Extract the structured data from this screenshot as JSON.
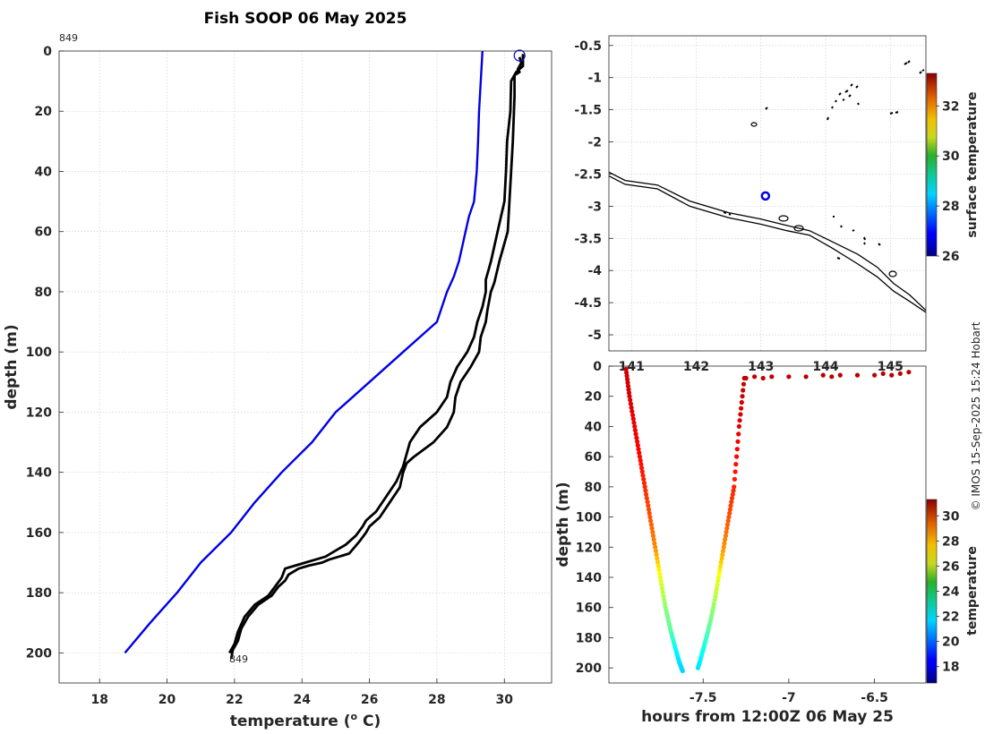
{
  "figure": {
    "title": "Fish SOOP 06 May 2025",
    "credit": "© IMOS 15-Sep-2025 15:24 Hobart"
  },
  "chart_data": [
    {
      "type": "line",
      "panel": "profile",
      "xlabel": "temperature (o C)",
      "xlabel_main": "temperature (",
      "xlabel_sup": "o",
      "xlabel_end": " C)",
      "ylabel": "depth (m)",
      "xlim": [
        16.8,
        31.4
      ],
      "ylim": [
        210,
        0
      ],
      "y_reversed": true,
      "xticks": [
        18,
        20,
        22,
        24,
        26,
        28,
        30
      ],
      "yticks": [
        0,
        20,
        40,
        60,
        80,
        100,
        120,
        140,
        160,
        180,
        200
      ],
      "grid": true,
      "annotations": [
        {
          "text": "849",
          "x": 16.8,
          "y": 0
        },
        {
          "text": "849",
          "x": 21.8,
          "y": 202
        }
      ],
      "marker": {
        "shape": "open-circle",
        "color": "#1010c8",
        "x": 30.45,
        "y": 1.5
      },
      "series": [
        {
          "color": "#0000e6",
          "x": [
            29.35,
            29.3,
            29.25,
            29.22,
            29.18,
            29.1,
            28.95,
            28.85,
            28.75,
            28.65,
            28.5,
            28.3,
            28.0,
            27.0,
            26.0,
            25.0,
            24.3,
            23.4,
            22.6,
            21.9,
            21.0,
            20.3,
            19.5,
            18.75
          ],
          "y": [
            0,
            10,
            20,
            30,
            40,
            50,
            55,
            60,
            65,
            70,
            75,
            80,
            90,
            100,
            110,
            120,
            130,
            140,
            150,
            160,
            170,
            180,
            190,
            200
          ]
        },
        {
          "color": "#000000",
          "x": [
            30.45,
            30.5,
            30.4,
            30.45,
            30.3,
            30.3,
            30.25,
            30.2,
            30.15,
            30.1,
            29.85,
            29.7,
            29.6,
            29.55,
            29.5,
            29.45,
            29.3,
            29.25,
            29.0,
            28.7,
            28.55,
            28.5,
            28.3,
            27.9,
            27.3,
            27.1,
            27.0,
            26.9,
            26.6,
            26.3,
            26.0,
            25.9,
            25.7,
            25.4,
            25.1,
            24.8,
            24.6,
            24.2,
            23.9,
            23.6,
            23.5,
            23.3,
            23.1,
            22.7,
            22.4,
            22.2,
            22.1,
            21.95,
            21.9
          ],
          "y": [
            2,
            4,
            6,
            7,
            8,
            15,
            30,
            40,
            50,
            60,
            70,
            77,
            80,
            83,
            86,
            90,
            95,
            100,
            105,
            110,
            115,
            120,
            125,
            130,
            135,
            137,
            140,
            145,
            150,
            155,
            158,
            160,
            163,
            167,
            168,
            169,
            170,
            171,
            172,
            174,
            176,
            178,
            181,
            184,
            188,
            192,
            196,
            199,
            202
          ]
        },
        {
          "color": "#000000",
          "x": [
            30.55,
            30.55,
            30.35,
            30.2,
            30.18,
            30.08,
            30.05,
            30.0,
            29.8,
            29.6,
            29.45,
            29.45,
            29.35,
            29.2,
            29.1,
            28.9,
            28.6,
            28.4,
            28.3,
            28.0,
            27.5,
            27.2,
            27.1,
            27.0,
            26.8,
            26.5,
            26.2,
            25.9,
            25.8,
            25.6,
            25.3,
            25.0,
            24.7,
            24.4,
            24.1,
            23.8,
            23.5,
            23.4,
            23.2,
            23.0,
            22.6,
            22.3,
            22.1,
            22.0,
            21.85
          ],
          "y": [
            1,
            5,
            7,
            10,
            20,
            30,
            40,
            50,
            60,
            70,
            76,
            80,
            85,
            90,
            95,
            100,
            105,
            110,
            115,
            120,
            125,
            130,
            134,
            138,
            143,
            148,
            153,
            156,
            158,
            161,
            164,
            166,
            168,
            169,
            170,
            171,
            172,
            175,
            178,
            181,
            184,
            188,
            193,
            197,
            200
          ]
        }
      ]
    },
    {
      "type": "map",
      "panel": "map",
      "xlim": [
        140.65,
        145.55
      ],
      "ylim": [
        -5.25,
        -0.35
      ],
      "xticks": [
        141,
        142,
        143,
        144,
        145
      ],
      "yticks": [
        -0.5,
        -1,
        -1.5,
        -2,
        -2.5,
        -3,
        -3.5,
        -4,
        -4.5,
        -5
      ],
      "grid": true,
      "position_marker": {
        "lon": 143.07,
        "lat": -2.84,
        "color": "#0000e6"
      },
      "coastlines": [
        {
          "lon": [
            140.65,
            140.9,
            141.4,
            141.9,
            142.5,
            143.0,
            143.4,
            143.75,
            144.1,
            144.5,
            144.8,
            145.05,
            145.3,
            145.55
          ],
          "lat": [
            -2.47,
            -2.6,
            -2.67,
            -2.92,
            -3.1,
            -3.2,
            -3.3,
            -3.38,
            -3.55,
            -3.75,
            -3.95,
            -4.2,
            -4.38,
            -4.62
          ]
        },
        {
          "lon": [
            140.65,
            140.9,
            141.4,
            141.9,
            142.5,
            143.0,
            143.4,
            143.75,
            144.1,
            144.5,
            144.8,
            145.05,
            145.3,
            145.55
          ],
          "lat": [
            -2.53,
            -2.66,
            -2.73,
            -3.0,
            -3.18,
            -3.28,
            -3.38,
            -3.45,
            -3.65,
            -3.9,
            -4.1,
            -4.32,
            -4.48,
            -4.65
          ]
        }
      ],
      "colorbar": {
        "label": "surface temperature",
        "min": 26,
        "max": 33.3,
        "ticks": [
          26,
          28,
          30,
          32
        ]
      }
    },
    {
      "type": "scatter",
      "panel": "timeseries",
      "xlabel": "hours from 12:00Z 06 May 25",
      "ylabel": "depth (m)",
      "xlim": [
        -8.05,
        -6.2
      ],
      "ylim": [
        210,
        0
      ],
      "y_reversed": true,
      "xticks": [
        -7.5,
        -7,
        -6.5
      ],
      "yticks": [
        0,
        20,
        40,
        60,
        80,
        100,
        120,
        140,
        160,
        180,
        200
      ],
      "grid": false,
      "series": [
        {
          "name": "",
          "x": [
            -7.95,
            -7.93,
            -7.9,
            -7.87,
            -7.84,
            -7.81,
            -7.78,
            -7.75,
            -7.72,
            -7.69,
            -7.66,
            -7.64,
            -7.62
          ],
          "y": [
            2,
            20,
            40,
            60,
            80,
            100,
            120,
            140,
            160,
            175,
            188,
            196,
            202
          ],
          "temperature": [
            30.2,
            30.0,
            29.7,
            29.4,
            28.9,
            28.3,
            27.5,
            25.5,
            24.2,
            23.5,
            22.2,
            21.8,
            21.6
          ]
        },
        {
          "name": "",
          "x": [
            -7.53,
            -7.5,
            -7.47,
            -7.44,
            -7.41,
            -7.38,
            -7.35,
            -7.32,
            -7.29,
            -7.26
          ],
          "y": [
            200,
            188,
            175,
            160,
            140,
            120,
            100,
            80,
            40,
            8
          ],
          "temperature": [
            21.8,
            22.3,
            23.4,
            24.3,
            25.6,
            27.4,
            28.3,
            29.0,
            29.8,
            30.4
          ]
        },
        {
          "name": "",
          "x": [
            -7.25,
            -7.2,
            -7.15,
            -7.1,
            -7.0,
            -6.9,
            -6.8,
            -6.75,
            -6.7,
            -6.6,
            -6.5,
            -6.45,
            -6.4,
            -6.35,
            -6.3
          ],
          "y": [
            8,
            7,
            8,
            7,
            7,
            7,
            6,
            7,
            6,
            6,
            6,
            5,
            6,
            5,
            4
          ],
          "temperature": [
            30.4,
            30.4,
            30.3,
            30.4,
            30.4,
            30.5,
            30.5,
            30.4,
            30.5,
            30.5,
            30.4,
            30.5,
            30.5,
            30.4,
            30.5
          ]
        }
      ],
      "colorbar": {
        "label": "temperature",
        "min": 16.7,
        "max": 31.3,
        "ticks": [
          18,
          20,
          22,
          24,
          26,
          28,
          30
        ]
      }
    }
  ]
}
